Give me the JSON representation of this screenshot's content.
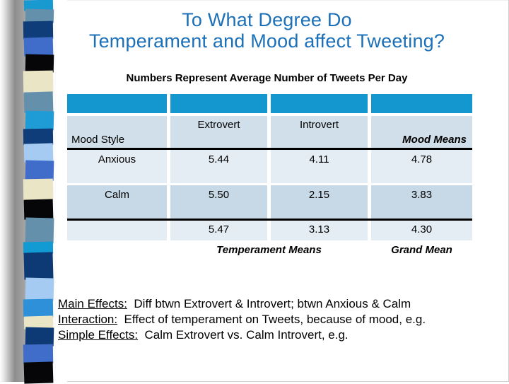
{
  "slide": {
    "title_line1": "To What Degree Do",
    "title_line2": "Temperament and Mood affect Tweeting?",
    "subtitle": "Numbers Represent Average Number of Tweets Per Day"
  },
  "colors": {
    "title-blue": "#1c70b8",
    "table-header": "#1497ce",
    "row-light": "#e4edf3",
    "row-medium": "#c7d9e6",
    "row-labels": "#d0dfe9"
  },
  "table": {
    "columns": {
      "mood_style": "Mood Style",
      "extrovert": "Extrovert",
      "introvert": "Introvert",
      "mood_means": "Mood Means"
    },
    "rows": [
      {
        "label": "Anxious",
        "extrovert": "5.44",
        "introvert": "4.11",
        "mood_mean": "4.78"
      },
      {
        "label": "Calm",
        "extrovert": "5.50",
        "introvert": "2.15",
        "mood_mean": "3.83"
      }
    ],
    "totals": {
      "extrovert": "5.47",
      "introvert": "3.13",
      "grand_mean": "4.30"
    },
    "footer": {
      "temperament_means": "Temperament Means",
      "grand_mean": "Grand Mean"
    }
  },
  "notes": [
    {
      "lead": "Main Effects:",
      "text": "  Diff btwn Extrovert & Introvert; btwn Anxious & Calm"
    },
    {
      "lead": "Interaction:",
      "text": "  Effect of temperament on Tweets, because of mood, e.g."
    },
    {
      "lead": "Simple Effects:",
      "text": "  Calm Extrovert vs. Calm Introvert, e.g."
    }
  ],
  "decoration": {
    "strip_colors": [
      "#1899cf",
      "#6590ac",
      "#0e3d7a",
      "#3f6dc9",
      "#060608",
      "#e9e5c5",
      "#6590ac",
      "#1f9cd6",
      "#0e3d7a",
      "#a6cbf3",
      "#3f6dc9",
      "#e9e5c5",
      "#060608",
      "#6590ac",
      "#129bd2",
      "#0d3a74",
      "#a6cbf3",
      "#2e90d8",
      "#e9e5c5",
      "#0d3a74",
      "#3f6dc9",
      "#060608"
    ]
  }
}
